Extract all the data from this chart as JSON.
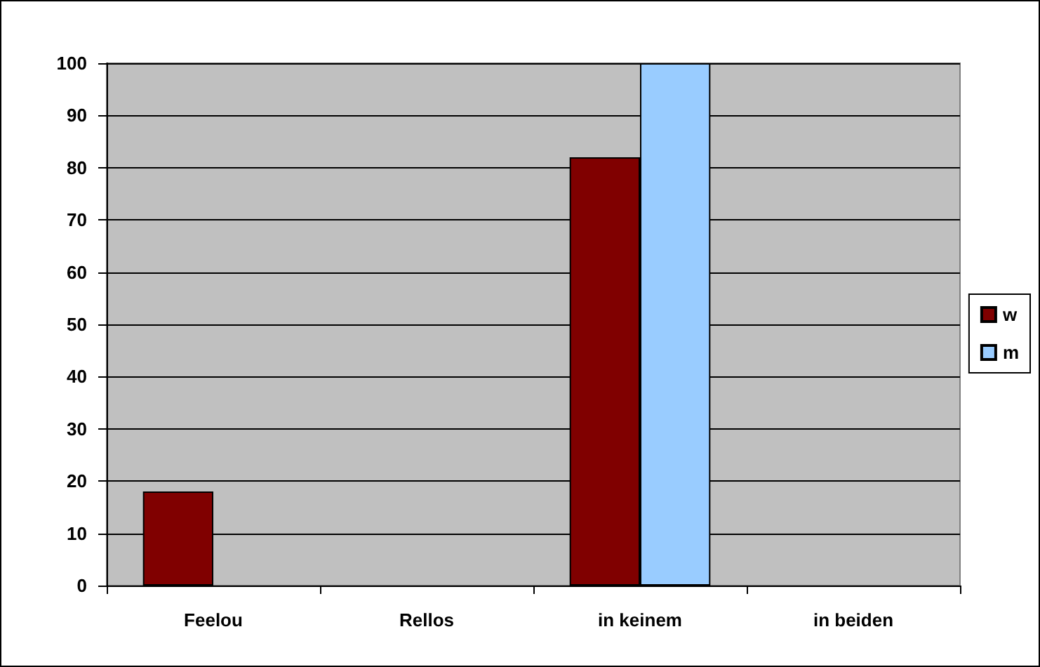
{
  "chart_data": {
    "type": "bar",
    "categories": [
      "Feelou",
      "Rellos",
      "in keinem",
      "in beiden"
    ],
    "series": [
      {
        "name": "w",
        "color": "#800000",
        "values": [
          18,
          0,
          82,
          0
        ]
      },
      {
        "name": "m",
        "color": "#99ccff",
        "values": [
          0,
          0,
          100,
          0
        ]
      }
    ],
    "ylim": [
      0,
      100
    ],
    "yticks": [
      0,
      10,
      20,
      30,
      40,
      50,
      60,
      70,
      80,
      90,
      100
    ],
    "grid": "y",
    "legend": "right"
  }
}
